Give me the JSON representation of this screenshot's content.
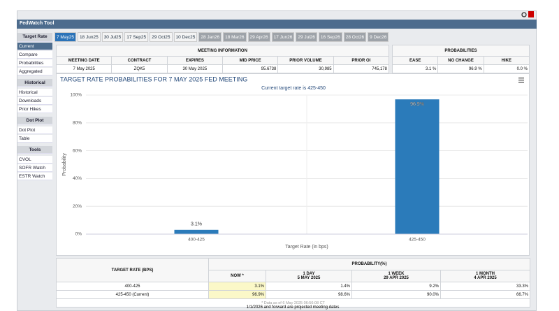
{
  "header": {
    "title": "FedWatch Tool"
  },
  "tabs": {
    "label": "Target Rate",
    "meetings": [
      "7 May25",
      "18 Jun25",
      "30 Jul25",
      "17 Sep25",
      "29 Oct25",
      "10 Dec25"
    ],
    "projected": [
      "28 Jan26",
      "18 Mar26",
      "29 Apr26",
      "17 Jun26",
      "29 Jul26",
      "16 Sep26",
      "28 Oct26",
      "9 Dec26"
    ]
  },
  "sidebar": {
    "items": [
      "Current",
      "Compare",
      "Probabilities",
      "Aggregated"
    ],
    "groups": [
      {
        "title": "Historical",
        "items": [
          "Historical",
          "Downloads",
          "Prior Hikes"
        ]
      },
      {
        "title": "Dot Plot",
        "items": [
          "Dot Plot",
          "Table"
        ]
      },
      {
        "title": "Tools",
        "items": [
          "CVOL",
          "SOFR Watch",
          "ESTR Watch"
        ]
      }
    ]
  },
  "meeting_info": {
    "title": "MEETING INFORMATION",
    "columns": [
      "MEETING DATE",
      "CONTRACT",
      "EXPIRES",
      "MID PRICE",
      "PRIOR VOLUME",
      "PRIOR OI"
    ],
    "row": [
      "7 May 2025",
      "ZQK5",
      "30 May 2025",
      "95.6738",
      "30,985",
      "745,178"
    ]
  },
  "probabilities": {
    "title": "PROBABILITIES",
    "columns": [
      "EASE",
      "NO CHANGE",
      "HIKE"
    ],
    "row": [
      "3.1 %",
      "96.9 %",
      "0.0 %"
    ]
  },
  "chart_data": {
    "type": "bar",
    "title": "TARGET RATE PROBABILITIES FOR 7 MAY 2025 FED MEETING",
    "subtitle": "Current target rate is 425-450",
    "x_label": "Target Rate (in bps)",
    "y_label": "Probability",
    "categories": [
      "400-425",
      "425-450"
    ],
    "values": [
      3.1,
      96.9
    ],
    "value_labels": [
      "3.1%",
      "96.9%"
    ],
    "color": "#2b7bba",
    "ylim": [
      0,
      100
    ],
    "yticks": [
      {
        "value": 0,
        "label": "0%"
      },
      {
        "value": 20,
        "label": "20%"
      },
      {
        "value": 40,
        "label": "40%"
      },
      {
        "value": 60,
        "label": "60%"
      },
      {
        "value": 80,
        "label": "80%"
      },
      {
        "value": 100,
        "label": "100%"
      }
    ],
    "grid": true
  },
  "prob_table": {
    "row_header": "TARGET RATE (BPS)",
    "title": "PROBABILITY(%)",
    "columns": [
      {
        "period": "NOW *"
      },
      {
        "period": "1 DAY",
        "date": "5 MAY 2025"
      },
      {
        "period": "1 WEEK",
        "date": "29 APR 2025"
      },
      {
        "period": "1 MONTH",
        "date": "4 APR 2025"
      }
    ],
    "rows": [
      [
        "400-425",
        "3.1%",
        "1.4%",
        "9.2%",
        "33.3%"
      ],
      [
        "425-450 (Current)",
        "96.9%",
        "98.6%",
        "90.0%",
        "66.7%"
      ]
    ],
    "note": "* Data as of 6 May 2025 06:56:08 CT"
  },
  "footer": "1/1/2026 and forward are projected meeting dates"
}
